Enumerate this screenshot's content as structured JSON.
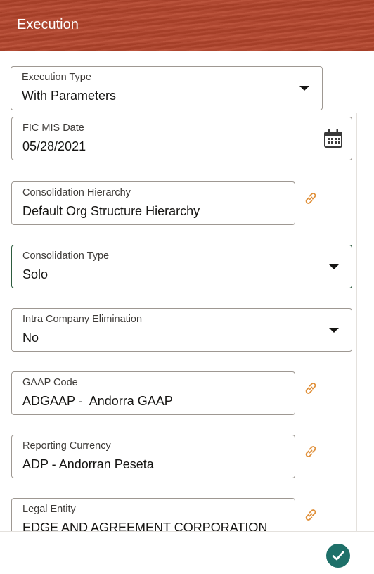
{
  "header": {
    "title": "Execution"
  },
  "fields": {
    "execution_type": {
      "label": "Execution Type",
      "value": "With Parameters"
    },
    "fic_mis_date": {
      "label": "FIC MIS Date",
      "value": "05/28/2021"
    },
    "consolidation_hierarchy": {
      "label": "Consolidation Hierarchy",
      "value": "Default Org Structure Hierarchy"
    },
    "consolidation_type": {
      "label": "Consolidation Type",
      "value": "Solo"
    },
    "intra_company_elimination": {
      "label": "Intra Company Elimination",
      "value": "No"
    },
    "gaap_code": {
      "label": "GAAP Code",
      "value": "ADGAAP -  Andorra GAAP"
    },
    "reporting_currency": {
      "label": "Reporting Currency",
      "value": "ADP - Andorran Peseta"
    },
    "legal_entity": {
      "label": "Legal Entity",
      "value": "EDGE AND AGREEMENT CORPORATION"
    }
  },
  "icons": {
    "calendar": "calendar-icon",
    "link": "link-icon",
    "dropdown": "caret-down-icon",
    "submit": "checkmark-icon"
  },
  "colors": {
    "header_bg": "#b5452c",
    "link_icon": "#e0903a",
    "focus_border": "#2d5b3e",
    "active_underline": "#2e6ca4",
    "submit_bg": "#1e7069"
  }
}
